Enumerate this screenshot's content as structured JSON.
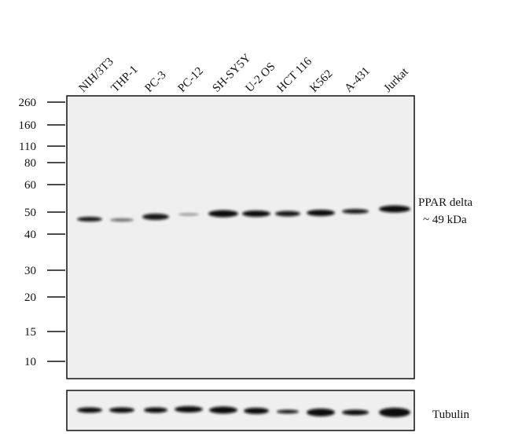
{
  "lanes": [
    "NIH/3T3",
    "THP-1",
    "PC-3",
    "PC-12",
    "SH-SY5Y",
    "U-2 OS",
    "HCT 116",
    "K562",
    "A-431",
    "Jurkat"
  ],
  "markers": [
    "260",
    "160",
    "110",
    "80",
    "60",
    "50",
    "40",
    "30",
    "20",
    "15",
    "10"
  ],
  "target": {
    "name": "PPAR delta",
    "size": "~  49 kDa"
  },
  "loading_control": "Tubulin"
}
